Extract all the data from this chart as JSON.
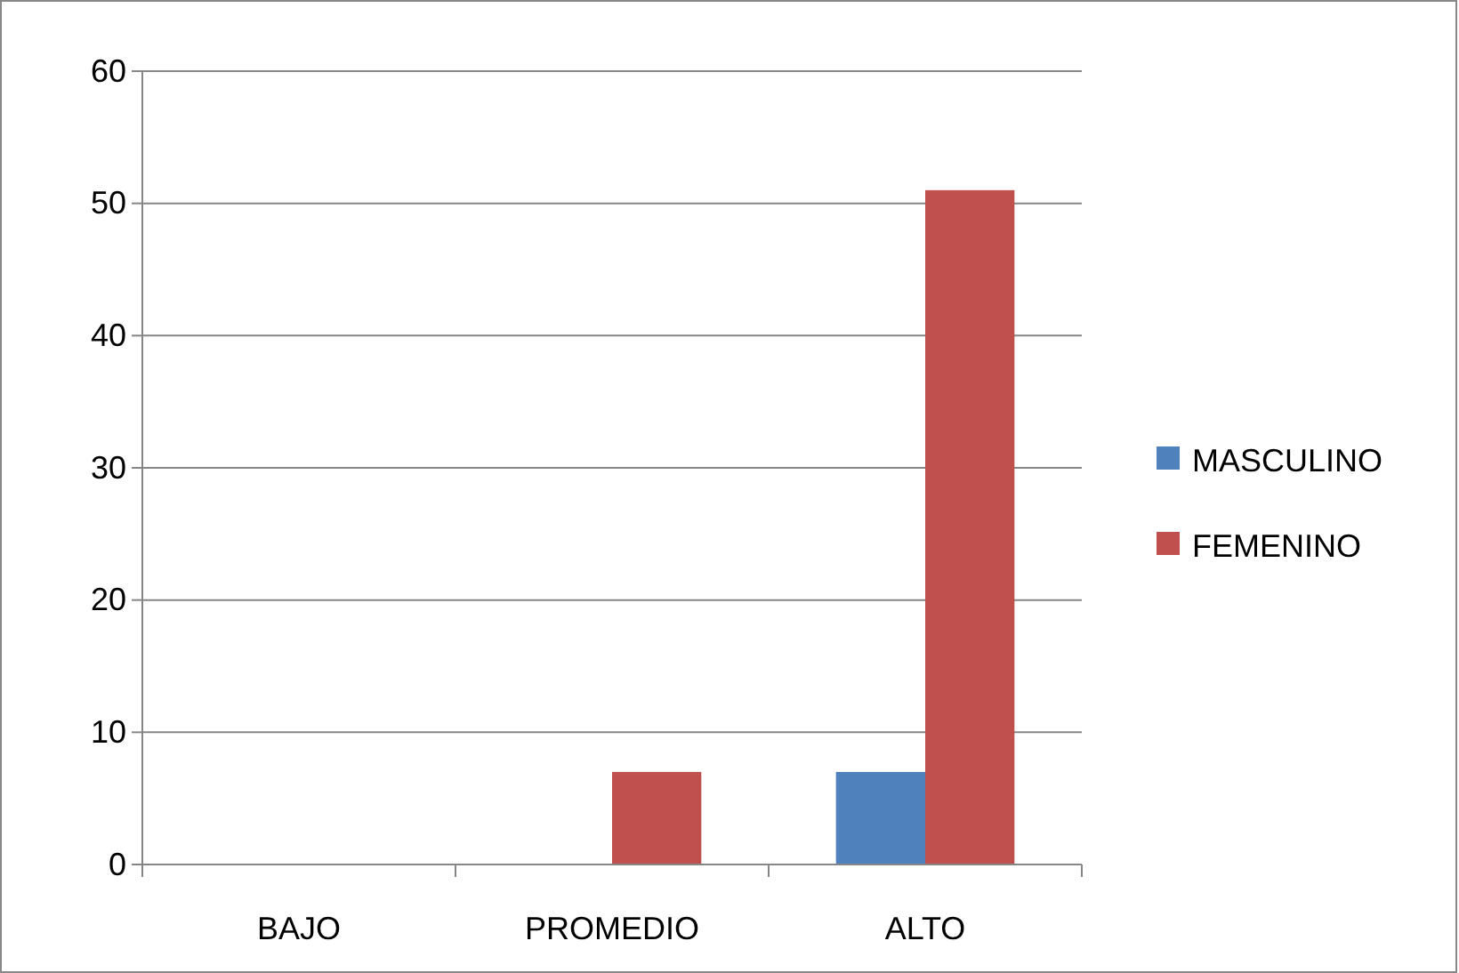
{
  "chart_data": {
    "type": "bar",
    "categories": [
      "BAJO",
      "PROMEDIO",
      "ALTO"
    ],
    "series": [
      {
        "name": "MASCULINO",
        "color": "#4f81bd",
        "values": [
          0,
          0,
          7
        ]
      },
      {
        "name": "FEMENINO",
        "color": "#c0504d",
        "values": [
          0,
          7,
          51
        ]
      }
    ],
    "ylim": [
      0,
      60
    ],
    "yticks": [
      0,
      10,
      20,
      30,
      40,
      50,
      60
    ],
    "grid": "y",
    "legend": "right"
  }
}
